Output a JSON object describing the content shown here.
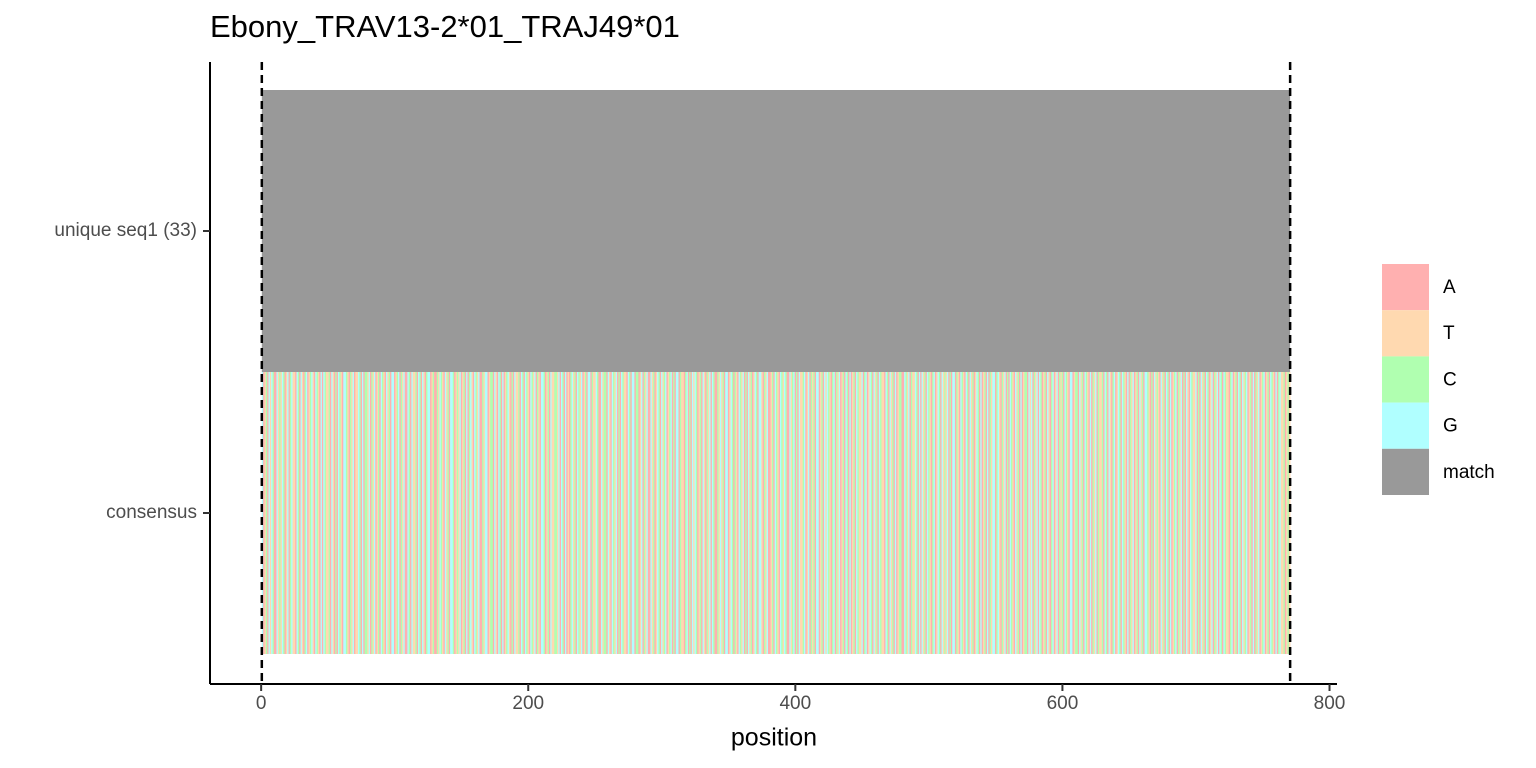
{
  "chart_data": {
    "type": "tile",
    "title": "Ebony_TRAV13-2*01_TRAJ49*01",
    "x_label": "position",
    "categories": [
      "unique seq1 (33)",
      "consensus"
    ],
    "xlim": [
      -38.3,
      805.6
    ],
    "xticks": [
      0,
      200,
      400,
      600,
      800
    ],
    "vlines": [
      0.5,
      770.5
    ],
    "legend": [
      {
        "name": "A",
        "color": "#ffb0b0"
      },
      {
        "name": "T",
        "color": "#ffd9b0"
      },
      {
        "name": "C",
        "color": "#b0ffb0"
      },
      {
        "name": "G",
        "color": "#b0ffff"
      },
      {
        "name": "match",
        "color": "#999999"
      }
    ],
    "rows": [
      {
        "fill": "match"
      },
      {
        "sequence": "GATCAGTGCAAGTCTGCATGACGTTAGCAGTACGATCGTAGCTAGAGCTTCAGTACAGCTAGGCTACTGATTGCAGACCTGACTGATCAGCTAGTCAGGATCGACTGAAGCAGTTCAGCAGTACGGATCAACTGCTAGTCAGGCATCTGATCAGACGTAGCTGAACTGGATCCAGTAGCAGATCGTACAGTTCAGCAGCTAGCTGACTAGGCATCAGTTCCTGAGCAGATACGTCAGCTGATCAGGACTTGCAAGTCCAGTAGCTGACAGCTTAGCAGGACCATGACTGAAGTCATGCAGTCGATCGACAGGACTTACGACAGTGCATCAGTACTGAGCAACTGTCAGGATGCACTAGCTGACAGTCATGCAGGTACTGAATCAGCTAGCTGCAAGTCGACAGTTCGATGACTCAGGATCAGTGCTACGACTGATCAGCAGATCAGCTTGACGATGCAGTCAGCTTAGCAGTCAGATCCAAGCTGACTTGCAGAGTCAGCTACGATGCAGTCTGACAGGACTAGCTAGCAGTCATGCAGATCAGACTGGACGTACTGACAGCTAGTCAGATCCAGTGACTGAGCATCAGTACGATGACTCAGCTAGGATCCAGTCAGCTAGACTGACTTCAGCAGTACGATGCAGCTAGACTGATCAGTCAGGCTACAGTCTAGTCAGCAGATCGACTGACAGTAGCTTGACAGTCAGCATGACTGAGCAGCTTACGATCAGCAGTCGATCAGACTGATCGATCAGCTAGACGTTCATCT"
      }
    ]
  }
}
